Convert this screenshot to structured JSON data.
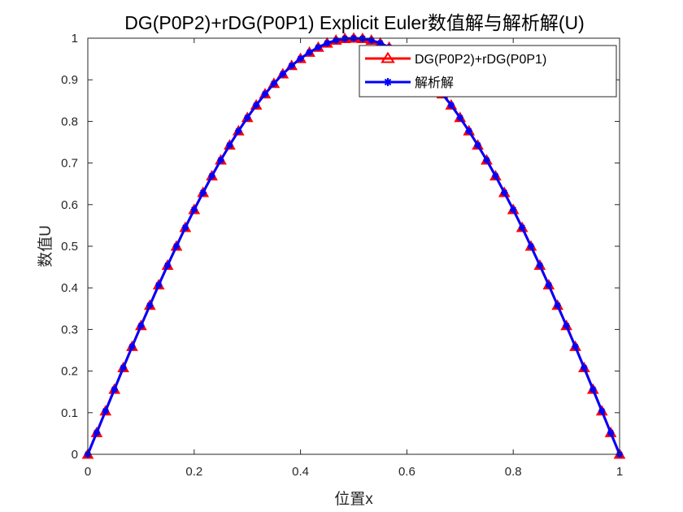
{
  "chart_data": {
    "type": "line",
    "title": "DG(P0P2)+rDG(P0P1) Explicit Euler数值解与解析解(U)",
    "xlabel": "位置x",
    "ylabel": "数值U",
    "xlim": [
      0,
      1
    ],
    "ylim": [
      0,
      1
    ],
    "xticks": [
      0,
      0.2,
      0.4,
      0.6,
      0.8,
      1
    ],
    "xtick_labels": [
      "0",
      "0.2",
      "0.4",
      "0.6",
      "0.8",
      "1"
    ],
    "yticks": [
      0,
      0.1,
      0.2,
      0.3,
      0.4,
      0.5,
      0.6,
      0.7,
      0.8,
      0.9,
      1
    ],
    "ytick_labels": [
      "0",
      "0.1",
      "0.2",
      "0.3",
      "0.4",
      "0.5",
      "0.6",
      "0.7",
      "0.8",
      "0.9",
      "1"
    ],
    "grid": false,
    "legend_position": "top-right",
    "series": [
      {
        "name": "DG(P0P2)+rDG(P0P1)",
        "color": "#ff0000",
        "marker": "triangle",
        "x": [
          0,
          0.0167,
          0.0333,
          0.05,
          0.0667,
          0.0833,
          0.1,
          0.1167,
          0.1333,
          0.15,
          0.1667,
          0.1833,
          0.2,
          0.2167,
          0.2333,
          0.25,
          0.2667,
          0.2833,
          0.3,
          0.3167,
          0.3333,
          0.35,
          0.3667,
          0.3833,
          0.4,
          0.4167,
          0.4333,
          0.45,
          0.4667,
          0.4833,
          0.5,
          0.5167,
          0.5333,
          0.55,
          0.5667,
          0.5833,
          0.6,
          0.6167,
          0.6333,
          0.65,
          0.6667,
          0.6833,
          0.7,
          0.7167,
          0.7333,
          0.75,
          0.7667,
          0.7833,
          0.8,
          0.8167,
          0.8333,
          0.85,
          0.8667,
          0.8833,
          0.9,
          0.9167,
          0.9333,
          0.95,
          0.9667,
          0.9833,
          1
        ],
        "y": [
          0,
          0.052,
          0.104,
          0.156,
          0.208,
          0.259,
          0.309,
          0.358,
          0.407,
          0.454,
          0.5,
          0.545,
          0.588,
          0.629,
          0.669,
          0.707,
          0.743,
          0.777,
          0.809,
          0.839,
          0.866,
          0.891,
          0.914,
          0.934,
          0.951,
          0.966,
          0.978,
          0.988,
          0.995,
          0.999,
          1,
          0.999,
          0.995,
          0.988,
          0.978,
          0.966,
          0.951,
          0.934,
          0.914,
          0.891,
          0.866,
          0.839,
          0.809,
          0.777,
          0.743,
          0.707,
          0.669,
          0.629,
          0.588,
          0.545,
          0.5,
          0.454,
          0.407,
          0.358,
          0.309,
          0.259,
          0.208,
          0.156,
          0.104,
          0.052,
          0
        ]
      },
      {
        "name": "解析解",
        "color": "#0000ff",
        "marker": "asterisk",
        "x": [
          0,
          0.0167,
          0.0333,
          0.05,
          0.0667,
          0.0833,
          0.1,
          0.1167,
          0.1333,
          0.15,
          0.1667,
          0.1833,
          0.2,
          0.2167,
          0.2333,
          0.25,
          0.2667,
          0.2833,
          0.3,
          0.3167,
          0.3333,
          0.35,
          0.3667,
          0.3833,
          0.4,
          0.4167,
          0.4333,
          0.45,
          0.4667,
          0.4833,
          0.5,
          0.5167,
          0.5333,
          0.55,
          0.5667,
          0.5833,
          0.6,
          0.6167,
          0.6333,
          0.65,
          0.6667,
          0.6833,
          0.7,
          0.7167,
          0.7333,
          0.75,
          0.7667,
          0.7833,
          0.8,
          0.8167,
          0.8333,
          0.85,
          0.8667,
          0.8833,
          0.9,
          0.9167,
          0.9333,
          0.95,
          0.9667,
          0.9833,
          1
        ],
        "y": [
          0,
          0.052,
          0.104,
          0.156,
          0.208,
          0.259,
          0.309,
          0.358,
          0.407,
          0.454,
          0.5,
          0.545,
          0.588,
          0.629,
          0.669,
          0.707,
          0.743,
          0.777,
          0.809,
          0.839,
          0.866,
          0.891,
          0.914,
          0.934,
          0.951,
          0.966,
          0.978,
          0.988,
          0.995,
          0.999,
          1,
          0.999,
          0.995,
          0.988,
          0.978,
          0.966,
          0.951,
          0.934,
          0.914,
          0.891,
          0.866,
          0.839,
          0.809,
          0.777,
          0.743,
          0.707,
          0.669,
          0.629,
          0.588,
          0.545,
          0.5,
          0.454,
          0.407,
          0.358,
          0.309,
          0.259,
          0.208,
          0.156,
          0.104,
          0.052,
          0
        ]
      }
    ]
  }
}
